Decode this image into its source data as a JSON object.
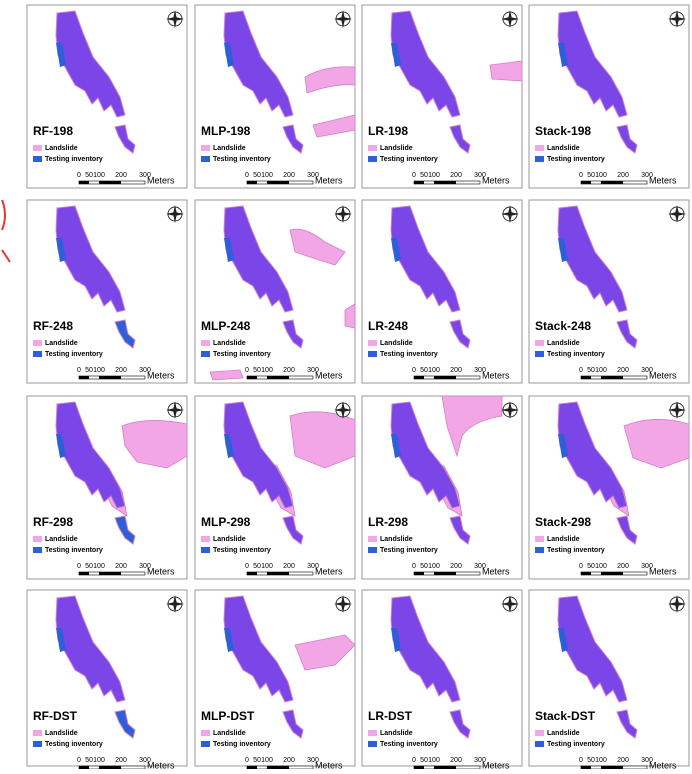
{
  "panels": [
    "RF-198",
    "MLP-198",
    "LR-198",
    "Stack-198",
    "RF-248",
    "MLP-248",
    "LR-248",
    "Stack-248",
    "RF-298",
    "MLP-298",
    "LR-298",
    "Stack-298",
    "RF-DST",
    "MLP-DST",
    "LR-DST",
    "Stack-DST"
  ],
  "legend": {
    "landslide": "Landslide",
    "testing": "Testing inventory"
  },
  "scale": {
    "labels": [
      "0",
      "50",
      "100",
      "200",
      "300"
    ],
    "unit": "Meters"
  }
}
